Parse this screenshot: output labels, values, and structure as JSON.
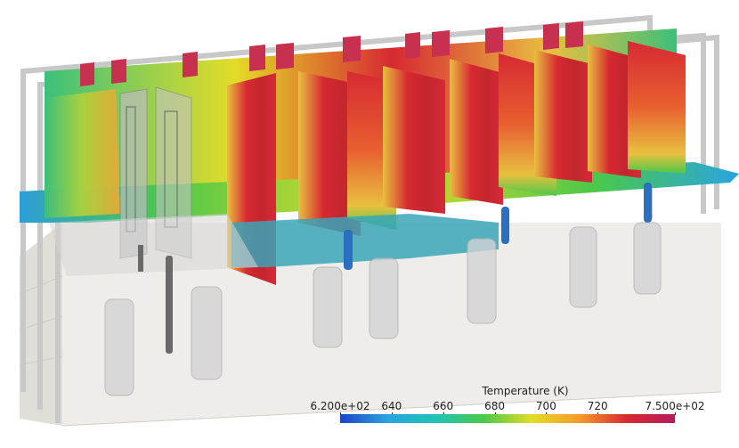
{
  "legend": {
    "title": "Temperature (K)",
    "ticks": [
      "6.200e+02",
      "640",
      "660",
      "680",
      "700",
      "720",
      "7.500e+02"
    ],
    "tick_values": [
      620,
      640,
      660,
      680,
      700,
      720,
      750
    ],
    "range": [
      620,
      750
    ],
    "colormap": [
      "#1d44c7",
      "#2aa4e0",
      "#20c3b5",
      "#4bc84a",
      "#e4dc28",
      "#f59a2a",
      "#d72932",
      "#b51c5e"
    ]
  },
  "colors": {
    "tank": "#eae8e2",
    "tube": "#c4c4c4",
    "pipe": "#2a6fc0",
    "hot": "#d8283a",
    "warm": "#e8c040",
    "cool": "#38b47a"
  }
}
